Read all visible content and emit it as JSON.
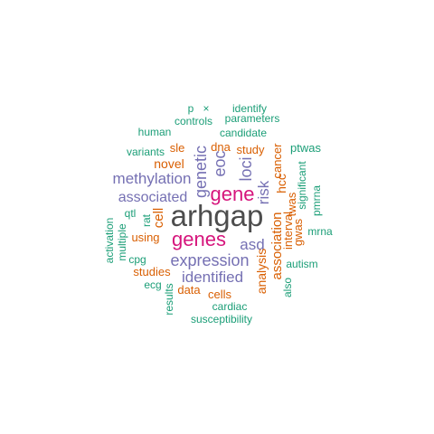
{
  "colors": {
    "dark": "#4d4d4d",
    "magenta": "#d6157c",
    "purple": "#7570b3",
    "orange": "#d95f02",
    "teal": "#1b9e77"
  },
  "words": {
    "arhgap": "arhgap",
    "gene": "gene",
    "genes": "genes",
    "expression": "expression",
    "methylation": "methylation",
    "identified": "identified",
    "associated": "associated",
    "genetic": "genetic",
    "eoc": "eoc",
    "loci": "loci",
    "risk": "risk",
    "asd": "asd",
    "association": "association",
    "analysis": "analysis",
    "novel": "novel",
    "study": "study",
    "sle": "sle",
    "dna": "dna",
    "hcc": "hcc",
    "cancer": "cancer",
    "twas": "twas",
    "interval": "interval",
    "gwas": "gwas",
    "cell": "cell",
    "using": "using",
    "studies": "studies",
    "data": "data",
    "cells": "cells",
    "rat": "rat",
    "p": "p",
    "x": "×",
    "identify": "identify",
    "controls": "controls",
    "parameters": "parameters",
    "human": "human",
    "candidate": "candidate",
    "variants": "variants",
    "ptwas": "ptwas",
    "significant": "significant",
    "pmrna": "pmrna",
    "mrna": "mrna",
    "qtl": "qtl",
    "multiple": "multiple",
    "activation": "activation",
    "cpg": "cpg",
    "autism": "autism",
    "also": "also",
    "ecg": "ecg",
    "results": "results",
    "cardiac": "cardiac",
    "susceptibility": "susceptibility"
  }
}
